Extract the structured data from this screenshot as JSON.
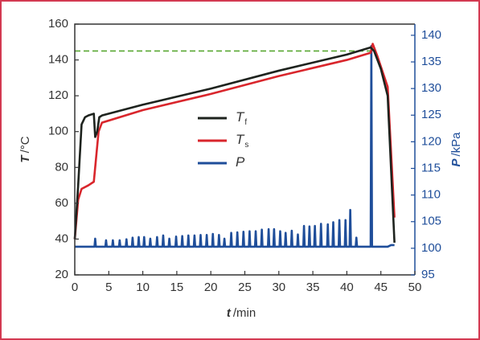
{
  "chart_data": {
    "type": "line",
    "xlabel_symbol": "t",
    "xlabel_unit": "/min",
    "ylabel_symbol": "T",
    "ylabel_unit": "/°C",
    "y2label_symbol": "P",
    "y2label_unit": "/kPa",
    "xlim": [
      0,
      50
    ],
    "xticks": [
      0,
      5,
      10,
      15,
      20,
      25,
      30,
      35,
      40,
      45,
      50
    ],
    "ylim": [
      20,
      160
    ],
    "yticks": [
      20,
      40,
      60,
      80,
      100,
      120,
      140,
      160
    ],
    "y2lim": [
      95,
      142.1
    ],
    "y2ticks": [
      95,
      100,
      105,
      110,
      115,
      120,
      125,
      130,
      135,
      140
    ],
    "reference_line": {
      "value": 145,
      "color": "#5aa832"
    },
    "series": [
      {
        "name": "T",
        "subscript": "f",
        "color": "#1e231e",
        "x": [
          0,
          0.5,
          1,
          1.5,
          2,
          2.8,
          3,
          3.3,
          3.6,
          4,
          10,
          20,
          30,
          40,
          43.5,
          44,
          45,
          46,
          47
        ],
        "values": [
          40,
          70,
          104,
          108,
          109,
          110,
          97,
          100,
          108,
          109,
          115,
          124,
          134,
          143,
          147,
          145,
          135,
          120,
          38
        ]
      },
      {
        "name": "T",
        "subscript": "s",
        "color": "#d9262c",
        "x": [
          0,
          0.5,
          1,
          2,
          2.8,
          3.5,
          4,
          10,
          20,
          30,
          40,
          43.5,
          43.8,
          44.5,
          46,
          47
        ],
        "values": [
          40,
          62,
          68,
          70,
          72,
          100,
          105,
          112,
          121,
          131,
          140,
          144,
          149,
          142,
          125,
          52
        ]
      },
      {
        "name": "P",
        "color": "#1f4e9a",
        "axis": "y2",
        "x": [
          0,
          2.9,
          3.0,
          3.1,
          4.5,
          4.6,
          4.7,
          5.5,
          5.6,
          5.7,
          6.5,
          6.6,
          6.7,
          7.5,
          7.6,
          7.7,
          8.4,
          8.5,
          8.6,
          9.3,
          9.4,
          9.5,
          10.1,
          10.2,
          10.3,
          11.0,
          11.1,
          11.2,
          12.0,
          12.1,
          12.2,
          12.9,
          13.0,
          13.1,
          13.8,
          13.9,
          14.0,
          14.8,
          14.9,
          15.0,
          15.7,
          15.8,
          15.9,
          16.6,
          16.7,
          16.8,
          17.5,
          17.6,
          17.7,
          18.4,
          18.5,
          18.6,
          19.3,
          19.4,
          19.5,
          20.2,
          20.3,
          20.4,
          21.1,
          21.2,
          21.3,
          21.9,
          22.0,
          22.1,
          22.9,
          23.0,
          23.1,
          23.8,
          23.9,
          24.0,
          24.7,
          24.8,
          24.9,
          25.6,
          25.7,
          25.8,
          26.5,
          26.6,
          26.7,
          27.4,
          27.5,
          27.6,
          28.4,
          28.5,
          28.6,
          29.2,
          29.3,
          29.4,
          30.1,
          30.2,
          30.3,
          30.9,
          31.0,
          31.1,
          31.8,
          31.9,
          32.0,
          32.7,
          32.8,
          32.9,
          33.6,
          33.7,
          33.8,
          34.4,
          34.5,
          34.6,
          35.2,
          35.3,
          35.4,
          36.1,
          36.2,
          36.3,
          37.1,
          37.2,
          37.3,
          37.9,
          38.0,
          38.1,
          38.8,
          38.9,
          39.0,
          39.7,
          39.8,
          39.9,
          40.4,
          40.5,
          40.6,
          41.3,
          41.4,
          41.5,
          43.5,
          43.6,
          43.7,
          46,
          46.5,
          47
        ],
        "values": [
          100.3,
          100.3,
          101.8,
          100.3,
          100.3,
          101.5,
          100.3,
          100.3,
          101.5,
          100.3,
          100.3,
          101.5,
          100.3,
          100.3,
          101.7,
          100.3,
          100.3,
          102.0,
          100.3,
          100.3,
          102.1,
          100.3,
          100.3,
          102.1,
          100.3,
          100.3,
          101.8,
          100.3,
          100.3,
          102.1,
          100.3,
          100.3,
          102.4,
          100.3,
          100.3,
          101.8,
          100.3,
          100.3,
          102.2,
          100.3,
          100.3,
          102.3,
          100.3,
          100.3,
          102.4,
          100.3,
          100.3,
          102.4,
          100.3,
          100.3,
          102.5,
          100.3,
          100.3,
          102.5,
          100.3,
          100.3,
          102.7,
          100.3,
          100.3,
          102.5,
          100.3,
          100.3,
          101.8,
          100.3,
          100.3,
          102.9,
          100.3,
          100.3,
          103.0,
          100.3,
          100.3,
          103.1,
          100.3,
          100.3,
          103.2,
          100.3,
          100.3,
          103.2,
          100.3,
          100.3,
          103.5,
          100.3,
          100.3,
          103.6,
          100.3,
          100.3,
          103.6,
          100.3,
          100.3,
          103.2,
          100.3,
          100.3,
          102.9,
          100.3,
          100.3,
          103.3,
          100.3,
          100.3,
          102.6,
          100.3,
          100.3,
          104.2,
          100.3,
          100.3,
          104.1,
          100.3,
          100.3,
          104.2,
          100.3,
          100.3,
          104.6,
          100.3,
          100.3,
          104.5,
          100.3,
          100.3,
          104.9,
          100.3,
          100.3,
          105.3,
          100.3,
          100.3,
          105.3,
          100.3,
          100.3,
          107.2,
          100.3,
          100.3,
          102.0,
          100.3,
          100.3,
          138.0,
          100.3,
          100.3,
          100.6,
          100.6
        ]
      }
    ]
  }
}
